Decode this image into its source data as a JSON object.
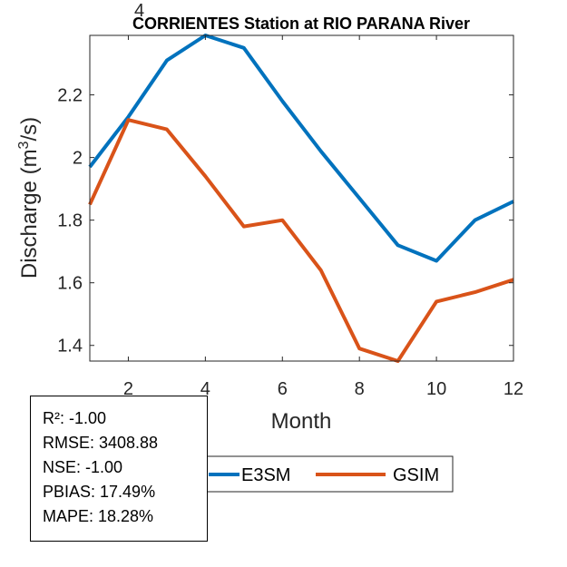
{
  "chart_data": {
    "type": "line",
    "title": "CORRIENTES  Station at  RIO PARANA  River",
    "xlabel": "Month",
    "ylabel_main": "Discharge (m",
    "ylabel_sup": "3",
    "ylabel_tail": "/s)",
    "exponent_label": "4",
    "x": [
      1,
      2,
      3,
      4,
      5,
      6,
      7,
      8,
      9,
      10,
      11,
      12
    ],
    "xlim": [
      1,
      12
    ],
    "ylim": [
      1.35,
      2.39
    ],
    "xticks": [
      2,
      4,
      6,
      8,
      10,
      12
    ],
    "yticks": [
      1.4,
      1.6,
      1.8,
      2.0,
      2.2
    ],
    "ytick_labels": [
      "1.4",
      "1.6",
      "1.8",
      "2",
      "2.2"
    ],
    "xtick_labels": [
      "2",
      "4",
      "6",
      "8",
      "10",
      "12"
    ],
    "series": [
      {
        "name": "E3SM",
        "color": "#0072BD",
        "values": [
          1.97,
          2.13,
          2.31,
          2.39,
          2.35,
          2.18,
          2.02,
          1.87,
          1.72,
          1.67,
          1.8,
          1.86
        ]
      },
      {
        "name": "GSIM",
        "color": "#D95319",
        "values": [
          1.85,
          2.12,
          2.09,
          1.94,
          1.78,
          1.8,
          1.64,
          1.39,
          1.35,
          1.54,
          1.57,
          1.61
        ]
      }
    ],
    "legend": [
      "E3SM",
      "GSIM"
    ]
  },
  "stats": {
    "r2": "R²: -1.00",
    "rmse": "RMSE: 3408.88",
    "nse": "NSE: -1.00",
    "pbias": "PBIAS: 17.49%",
    "mape": "MAPE: 18.28%"
  }
}
